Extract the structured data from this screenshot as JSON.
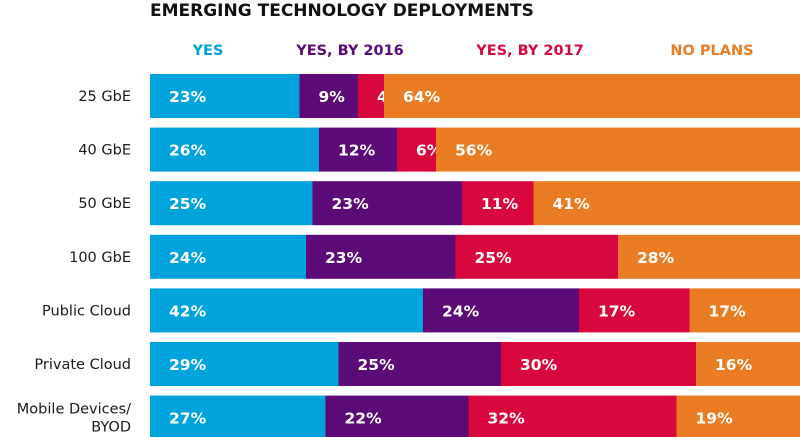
{
  "chart_data": {
    "type": "bar",
    "orientation": "horizontal",
    "stacked": true,
    "title": "EMERGING TECHNOLOGY DEPLOYMENTS",
    "value_suffix": "%",
    "xlim": [
      0,
      100
    ],
    "grid": false,
    "legend_position": "top",
    "categories": [
      [
        "25 GbE"
      ],
      [
        "40 GbE"
      ],
      [
        "50 GbE"
      ],
      [
        "100 GbE"
      ],
      [
        "Public Cloud"
      ],
      [
        "Private Cloud"
      ],
      [
        "Mobile Devices/",
        "BYOD"
      ]
    ],
    "series": [
      {
        "name": "YES",
        "color": "#00a3dc",
        "values": [
          23,
          26,
          25,
          24,
          42,
          29,
          27
        ]
      },
      {
        "name": "YES, BY 2016",
        "color": "#5b0a78",
        "values": [
          9,
          12,
          23,
          23,
          24,
          25,
          22
        ]
      },
      {
        "name": "YES, BY 2017",
        "color": "#d8083e",
        "values": [
          4,
          6,
          11,
          25,
          17,
          30,
          32
        ]
      },
      {
        "name": "NO PLANS",
        "color": "#ea7d23",
        "values": [
          64,
          56,
          41,
          28,
          17,
          16,
          19
        ]
      }
    ]
  }
}
